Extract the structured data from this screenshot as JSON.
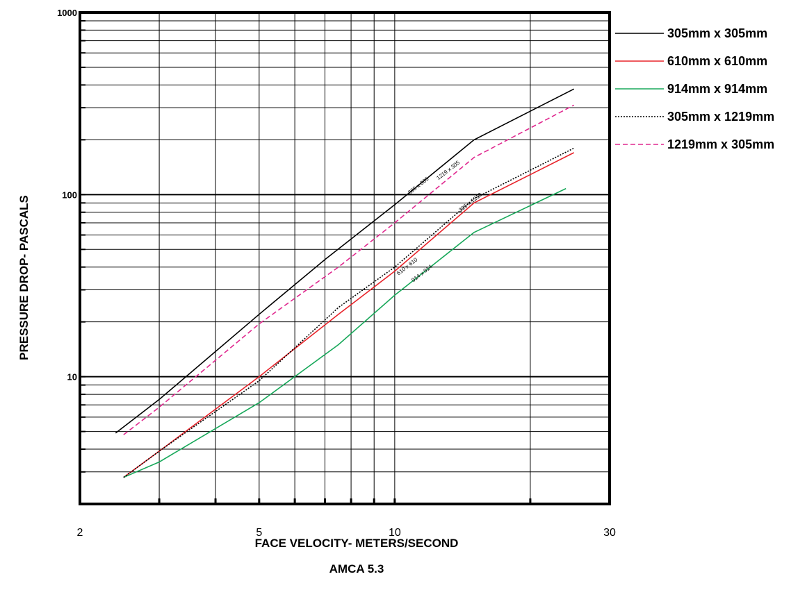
{
  "chart_data": {
    "type": "line",
    "title": "",
    "xlabel": "FACE VELOCITY- METERS/SECOND",
    "subtitle": "AMCA 5.3",
    "ylabel": "PRESSURE DROP- PASCALS",
    "x_scale": "log",
    "y_scale": "log",
    "xlim": [
      2,
      30
    ],
    "ylim": [
      2,
      1000
    ],
    "grid": true,
    "legend_position": "right",
    "x_tick_labels": [
      {
        "value": 2,
        "label": "2"
      },
      {
        "value": 5,
        "label": "5"
      },
      {
        "value": 10,
        "label": "10"
      },
      {
        "value": 30,
        "label": "30"
      }
    ],
    "y_tick_labels": [
      {
        "value": 10,
        "label": "10"
      },
      {
        "value": 100,
        "label": "100"
      },
      {
        "value": 1000,
        "label": "1000"
      }
    ],
    "series": [
      {
        "name": "305mm x 305mm",
        "color": "#000000",
        "dash": "solid",
        "annotation": "305 x 305",
        "annotation_at": [
          10.8,
          100
        ],
        "points": [
          [
            2.4,
            4.9
          ],
          [
            3,
            7.5
          ],
          [
            5,
            22
          ],
          [
            7,
            44
          ],
          [
            10,
            88
          ],
          [
            15,
            200
          ],
          [
            25,
            380
          ]
        ]
      },
      {
        "name": "610mm x 610mm",
        "color": "#e8232a",
        "dash": "solid",
        "annotation": "610 x 610",
        "annotation_at": [
          10.2,
          36
        ],
        "points": [
          [
            2.5,
            2.8
          ],
          [
            3,
            3.9
          ],
          [
            5,
            10
          ],
          [
            7.5,
            22
          ],
          [
            10,
            38
          ],
          [
            15,
            90
          ],
          [
            25,
            170
          ]
        ]
      },
      {
        "name": "914mm x 914mm",
        "color": "#18a85a",
        "dash": "solid",
        "annotation": "914 x 914",
        "annotation_at": [
          11,
          33
        ],
        "points": [
          [
            2.5,
            2.8
          ],
          [
            3,
            3.4
          ],
          [
            5,
            7.2
          ],
          [
            7.5,
            15
          ],
          [
            10,
            28
          ],
          [
            15,
            62
          ],
          [
            24,
            108
          ]
        ]
      },
      {
        "name": "305mm x 1219mm",
        "color": "#000000",
        "dash": "dotted",
        "annotation": "305 x 1219",
        "annotation_at": [
          14,
          80
        ],
        "points": [
          [
            2.5,
            2.8
          ],
          [
            3,
            3.9
          ],
          [
            5,
            9.5
          ],
          [
            7.5,
            24
          ],
          [
            10,
            40
          ],
          [
            15,
            95
          ],
          [
            25,
            180
          ]
        ]
      },
      {
        "name": "1219mm x 305mm",
        "color": "#e0288f",
        "dash": "dashed",
        "annotation": "1219 x 305",
        "annotation_at": [
          12.5,
          120
        ],
        "points": [
          [
            2.5,
            4.8
          ],
          [
            3,
            6.8
          ],
          [
            5,
            19.5
          ],
          [
            7.5,
            40
          ],
          [
            10,
            70
          ],
          [
            15,
            160
          ],
          [
            25,
            310
          ]
        ]
      }
    ]
  }
}
